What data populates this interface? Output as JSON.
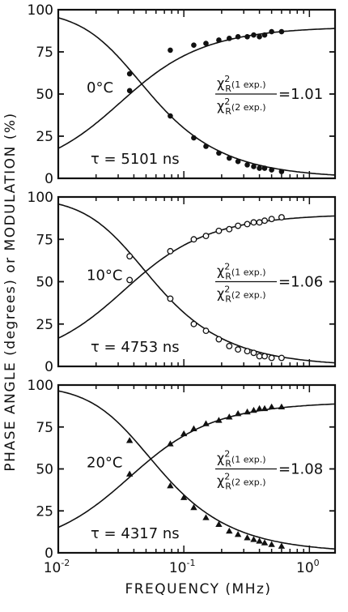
{
  "figure": {
    "ylabel": "PHASE ANGLE (degrees) or MODULATION (%)",
    "xlabel": "FREQUENCY (MHz)"
  },
  "chart_data": [
    {
      "type": "scatter",
      "xscale": "log",
      "xlim": [
        0.01,
        1.6
      ],
      "ylim": [
        0,
        100
      ],
      "yticks": [
        "0",
        "25",
        "50",
        "75",
        "100"
      ],
      "xticks": [
        {
          "base": "10",
          "exp": "-2"
        },
        {
          "base": "10",
          "exp": "-1"
        },
        {
          "base": "10",
          "exp": "0"
        }
      ],
      "marker": "filled-circle",
      "annotations": {
        "temperature": "0°C",
        "tau": "τ = 5101 ns",
        "chi_num": "χ",
        "chi_num_sub": "R",
        "chi_num_sup": "2",
        "chi_num_label": "(1 exp.)",
        "chi_den": "χ",
        "chi_den_sub": "R",
        "chi_den_sup": "2",
        "chi_den_label": "(2 exp.)",
        "chi_ratio": "=1.01"
      },
      "series": [
        {
          "kind": "phase",
          "x": [
            0.037,
            0.078,
            0.12,
            0.15,
            0.19,
            0.23,
            0.27,
            0.32,
            0.36,
            0.4,
            0.44,
            0.5,
            0.6
          ],
          "y": [
            62,
            76,
            79,
            80,
            82,
            83,
            84,
            84,
            85,
            84,
            85,
            87,
            87
          ]
        },
        {
          "kind": "modulation",
          "x": [
            0.037,
            0.078,
            0.12,
            0.15,
            0.19,
            0.23,
            0.27,
            0.32,
            0.36,
            0.4,
            0.44,
            0.5,
            0.6
          ],
          "y": [
            52,
            37,
            24,
            19,
            15,
            12,
            10,
            8,
            7,
            6,
            6,
            5,
            4
          ]
        }
      ],
      "fit": {
        "kind": "single-exponential",
        "tau_ns": 5101
      }
    },
    {
      "type": "scatter",
      "xscale": "log",
      "xlim": [
        0.01,
        1.6
      ],
      "ylim": [
        0,
        100
      ],
      "yticks": [
        "0",
        "25",
        "50",
        "75",
        "100"
      ],
      "xticks": [
        {
          "base": "10",
          "exp": "-2"
        },
        {
          "base": "10",
          "exp": "-1"
        },
        {
          "base": "10",
          "exp": "0"
        }
      ],
      "marker": "open-circle",
      "annotations": {
        "temperature": "10°C",
        "tau": "τ = 4753 ns",
        "chi_num": "χ",
        "chi_num_sub": "R",
        "chi_num_sup": "2",
        "chi_num_label": "(1 exp.)",
        "chi_den": "χ",
        "chi_den_sub": "R",
        "chi_den_sup": "2",
        "chi_den_label": "(2 exp.)",
        "chi_ratio": "=1.06"
      },
      "series": [
        {
          "kind": "phase",
          "x": [
            0.037,
            0.078,
            0.12,
            0.15,
            0.19,
            0.23,
            0.27,
            0.32,
            0.36,
            0.4,
            0.44,
            0.5,
            0.6
          ],
          "y": [
            65,
            68,
            75,
            77,
            80,
            81,
            83,
            84,
            85,
            85,
            86,
            87,
            88
          ]
        },
        {
          "kind": "modulation",
          "x": [
            0.037,
            0.078,
            0.12,
            0.15,
            0.19,
            0.23,
            0.27,
            0.32,
            0.36,
            0.4,
            0.44,
            0.5,
            0.6
          ],
          "y": [
            51,
            40,
            25,
            21,
            16,
            12,
            10,
            9,
            8,
            6,
            6,
            5,
            5
          ]
        }
      ],
      "fit": {
        "kind": "single-exponential",
        "tau_ns": 4753
      }
    },
    {
      "type": "scatter",
      "xscale": "log",
      "xlim": [
        0.01,
        1.6
      ],
      "ylim": [
        0,
        100
      ],
      "yticks": [
        "0",
        "25",
        "50",
        "75",
        "100"
      ],
      "xticks": [
        {
          "base": "10",
          "exp": "-2"
        },
        {
          "base": "10",
          "exp": "-1"
        },
        {
          "base": "10",
          "exp": "0"
        }
      ],
      "marker": "filled-triangle",
      "annotations": {
        "temperature": "20°C",
        "tau": "τ = 4317 ns",
        "chi_num": "χ",
        "chi_num_sub": "R",
        "chi_num_sup": "2",
        "chi_num_label": "(1 exp.)",
        "chi_den": "χ",
        "chi_den_sub": "R",
        "chi_den_sup": "2",
        "chi_den_label": "(2 exp.)",
        "chi_ratio": "=1.08"
      },
      "series": [
        {
          "kind": "phase",
          "x": [
            0.037,
            0.078,
            0.1,
            0.12,
            0.15,
            0.19,
            0.23,
            0.27,
            0.32,
            0.36,
            0.4,
            0.44,
            0.5,
            0.6
          ],
          "y": [
            47,
            65,
            71,
            74,
            77,
            79,
            81,
            83,
            84,
            85,
            86,
            86,
            87,
            87
          ]
        },
        {
          "kind": "modulation",
          "x": [
            0.037,
            0.078,
            0.1,
            0.12,
            0.15,
            0.19,
            0.23,
            0.27,
            0.32,
            0.36,
            0.4,
            0.44,
            0.5,
            0.6
          ],
          "y": [
            67,
            40,
            33,
            27,
            21,
            17,
            13,
            11,
            9,
            8,
            7,
            6,
            5,
            4
          ]
        }
      ],
      "fit": {
        "kind": "single-exponential",
        "tau_ns": 4317
      }
    }
  ]
}
